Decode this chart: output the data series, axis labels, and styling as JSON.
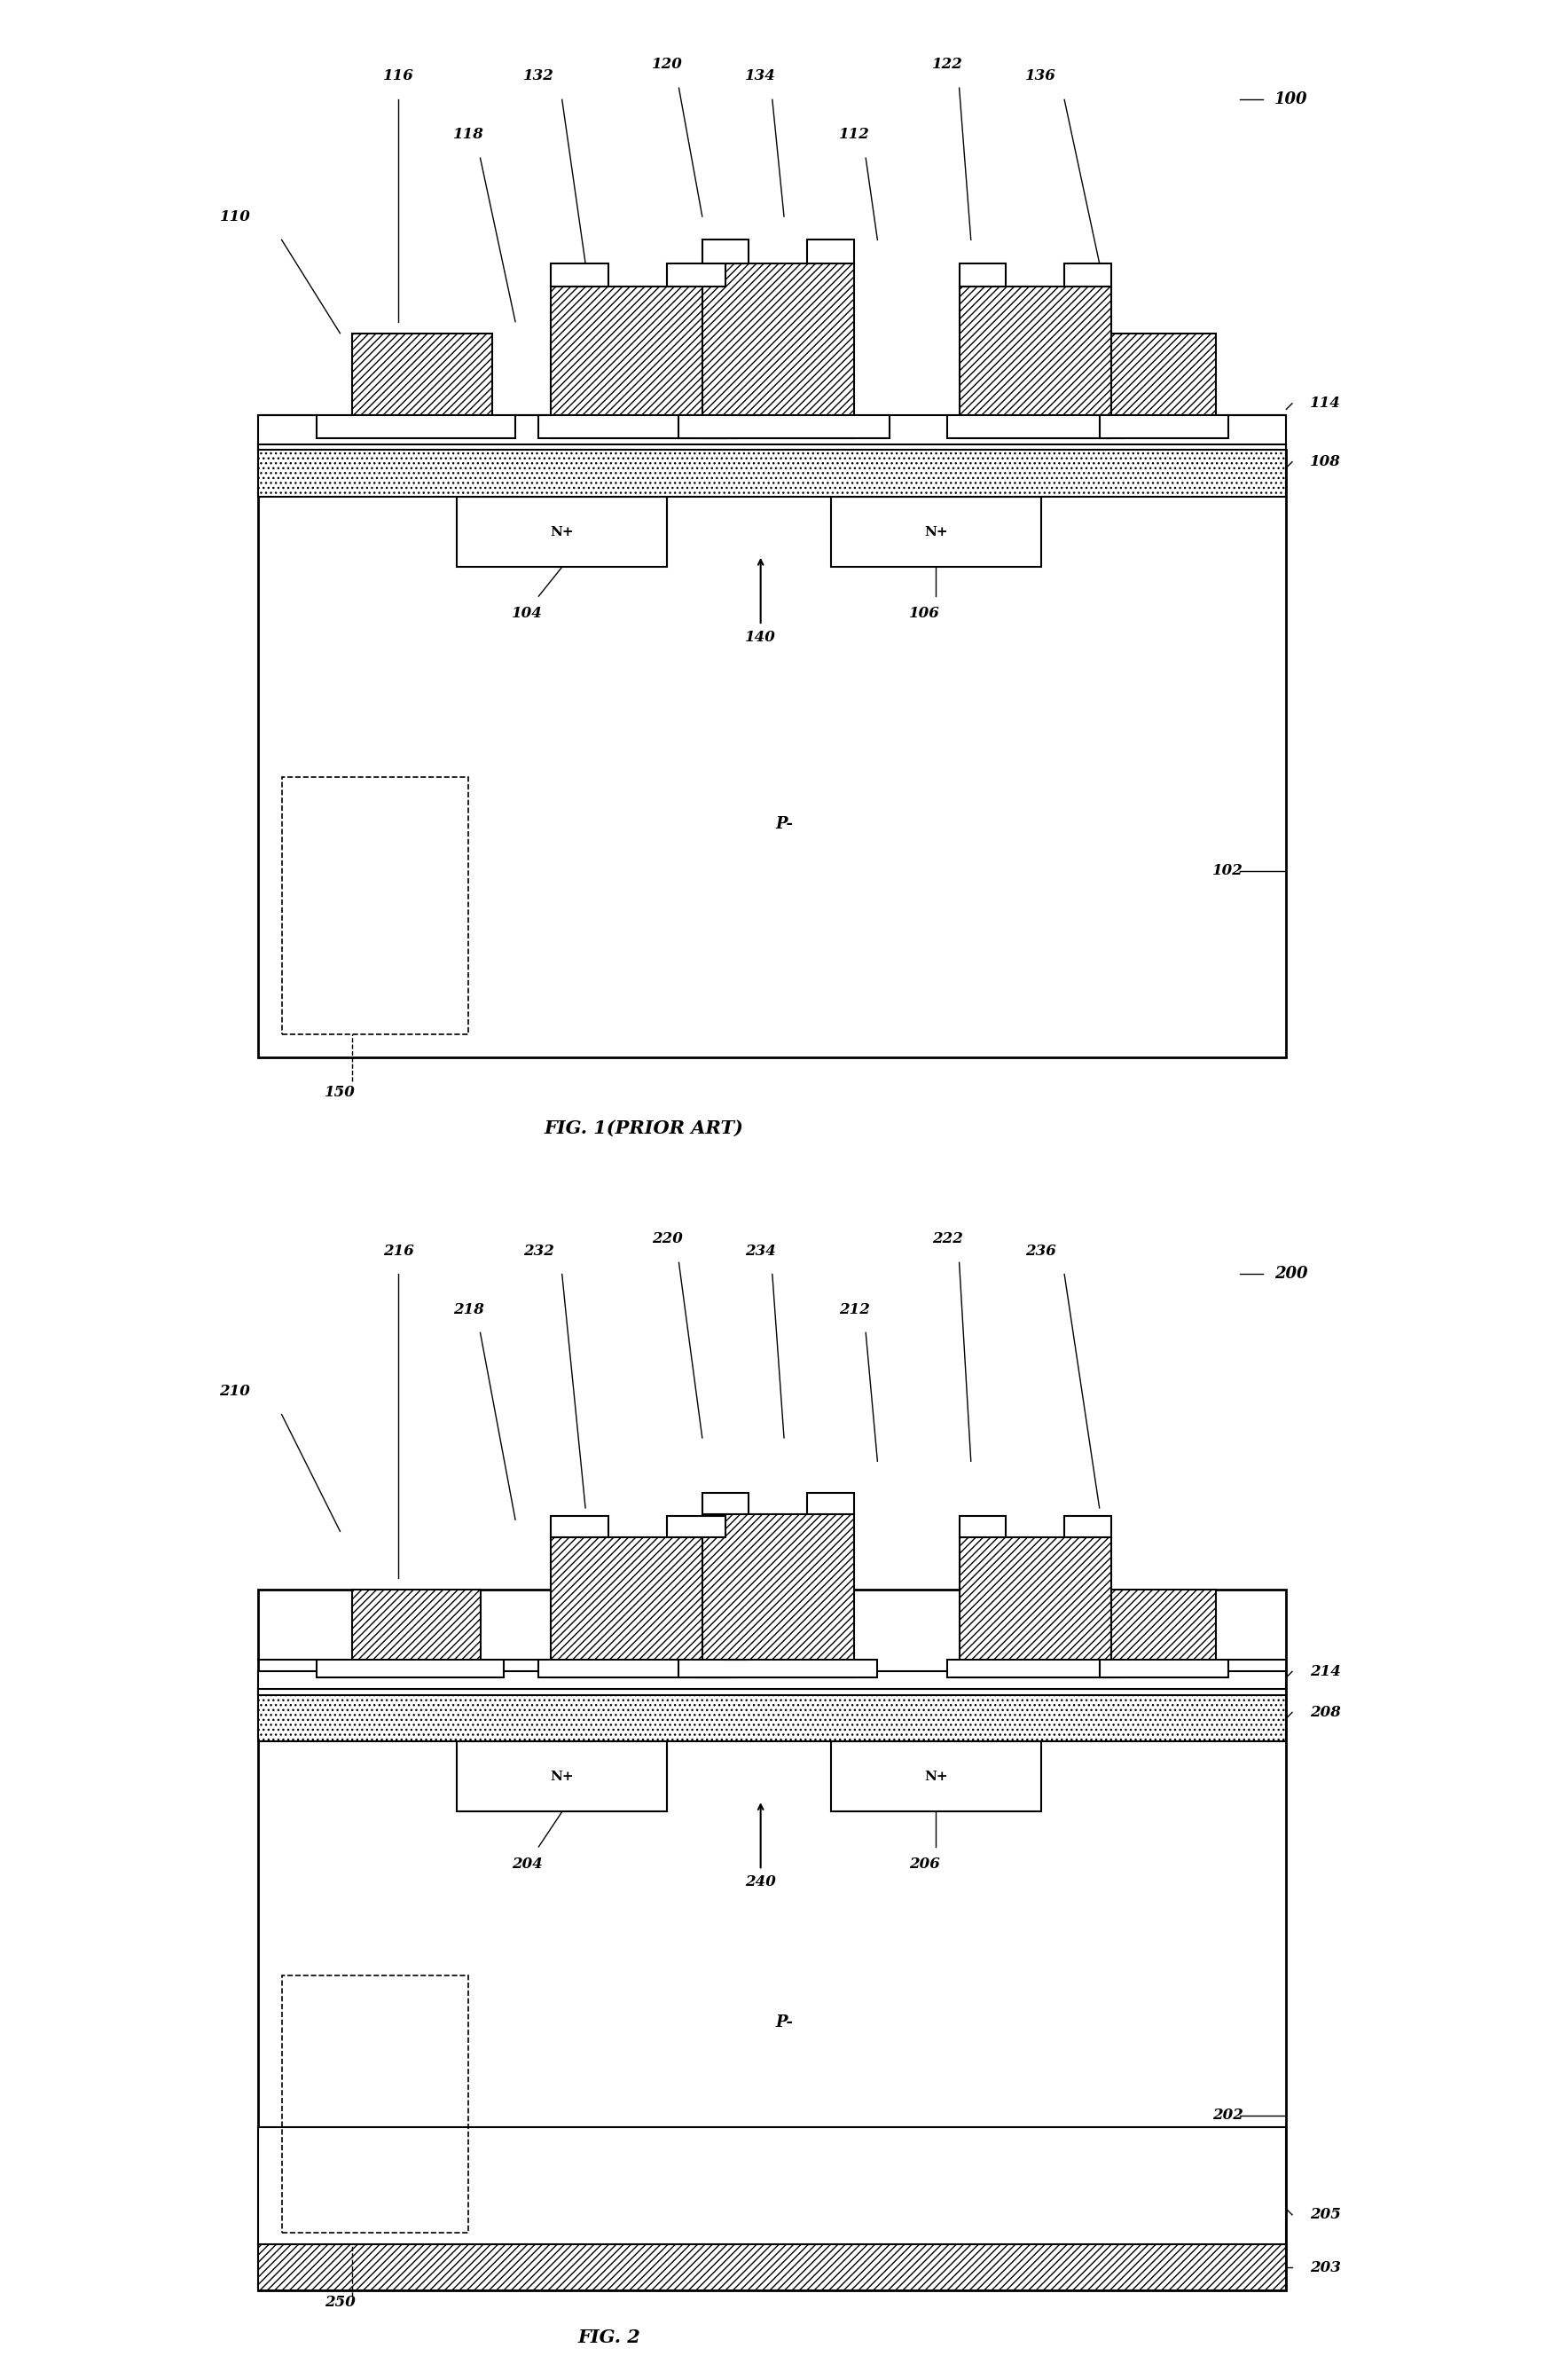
{
  "fig_width": 17.68,
  "fig_height": 26.56,
  "bg_color": "#ffffff",
  "line_color": "#000000",
  "hatch_color": "#000000",
  "dot_pattern": ".",
  "fig1_title": "FIG. 1(PRIOR ART)",
  "fig2_title": "FIG. 2",
  "fig1_label": "100",
  "fig2_label": "200"
}
